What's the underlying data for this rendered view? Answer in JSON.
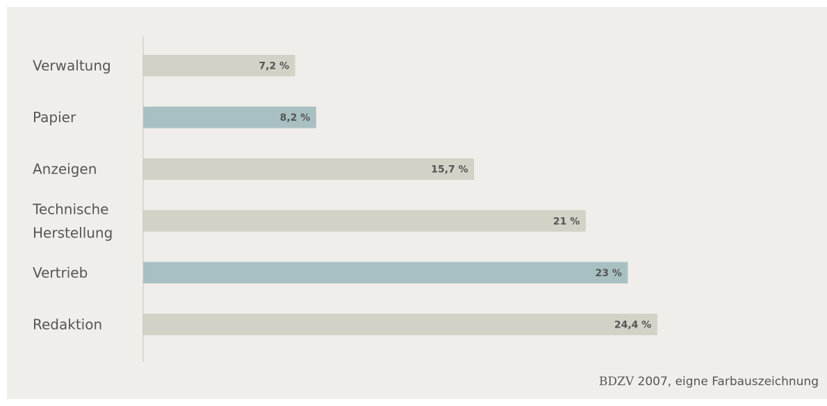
{
  "chart_data": {
    "type": "bar",
    "orientation": "horizontal",
    "categories": [
      "Verwaltung",
      "Papier",
      "Anzeigen",
      "Technische Herstellung",
      "Vertrieb",
      "Redaktion"
    ],
    "category_lines": [
      [
        "Verwaltung"
      ],
      [
        "Papier"
      ],
      [
        "Anzeigen"
      ],
      [
        "Technische",
        "Herstellung"
      ],
      [
        "Vertrieb"
      ],
      [
        "Redaktion"
      ]
    ],
    "values": [
      7.2,
      8.2,
      15.7,
      21,
      23,
      24.4
    ],
    "value_labels": [
      "7,2 %",
      "8,2 %",
      "15,7 %",
      "21 %",
      "23 %",
      "24,4 %"
    ],
    "highlighted": [
      false,
      true,
      false,
      false,
      true,
      false
    ],
    "xlim": [
      0,
      32.5
    ],
    "unit": "%",
    "grid": false,
    "legend": "none"
  },
  "colors": {
    "background": "#efeeea",
    "bar": "#d4d1c6",
    "bar_highlight": "#a9c0c2",
    "axis": "#c4c1b8",
    "text": "#555555"
  },
  "source": {
    "org": "BDZV",
    "rest": " 2007, eigne Farbauszeichnung"
  }
}
